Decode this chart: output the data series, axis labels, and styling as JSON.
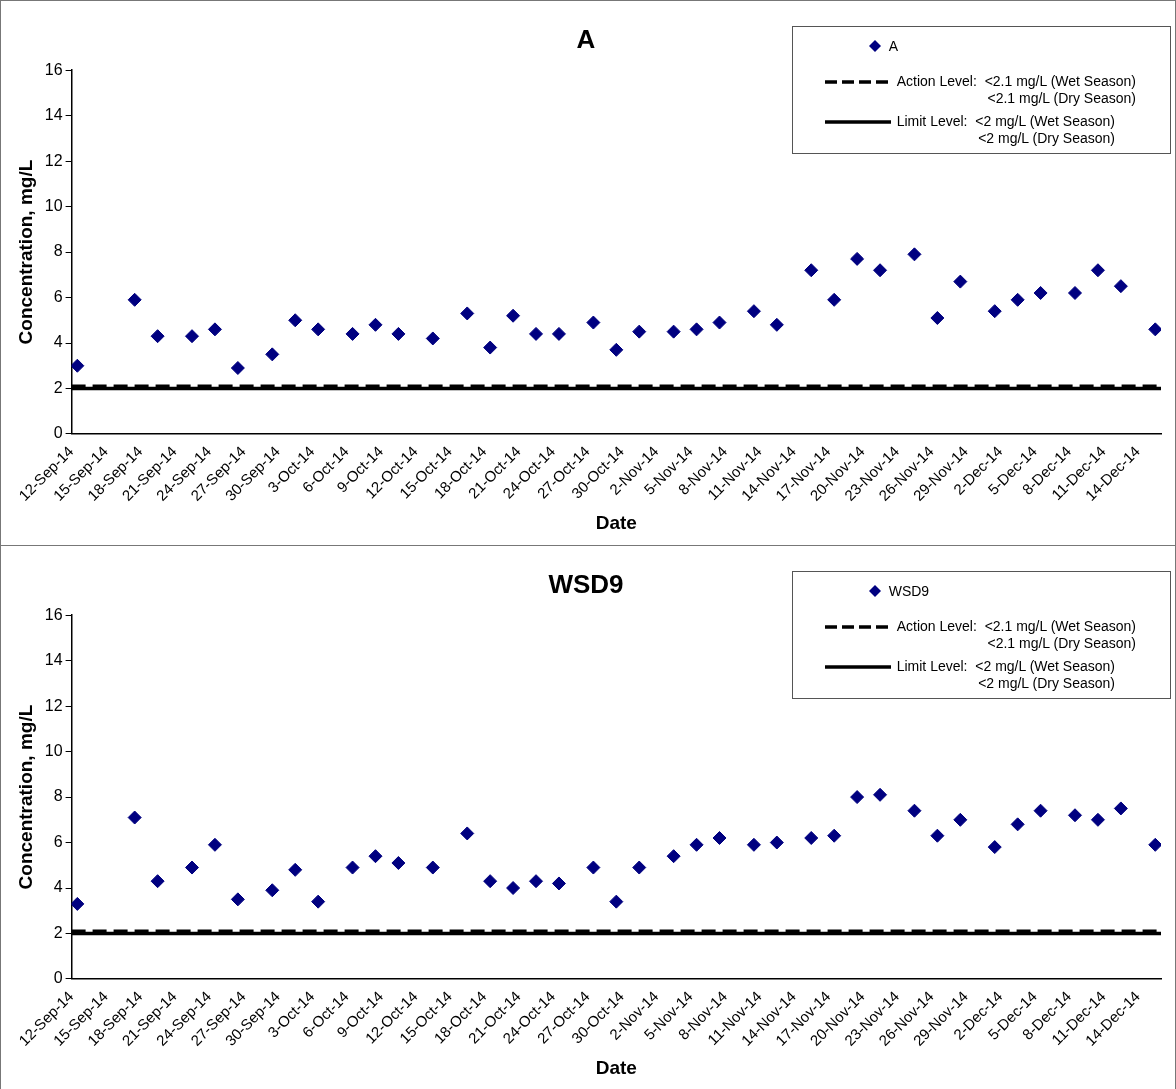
{
  "chart_data": [
    {
      "type": "scatter",
      "title": "A",
      "xlabel": "Date",
      "ylabel": "Concentration, mg/L",
      "x": [
        "--09-12T12:00",
        "--09-17T12:00",
        "--09-19T12:00",
        "--09-22T12:00",
        "--09-24T12:00",
        "--09-26T12:00",
        "--09-29T12:00",
        "--10-01T12:00",
        "--10-03T12:00",
        "--10-06T12:00",
        "--10-08T12:00",
        "--10-10T12:00",
        "--10-13T12:00",
        "--10-16T12:00",
        "--10-18T12:00",
        "--10-20T12:00",
        "--10-22T12:00",
        "--10-24T12:00",
        "--10-27T12:00",
        "--10-29T12:00",
        "--10-31T12:00",
        "--11-03T12:00",
        "--11-05T12:00",
        "--11-07T12:00",
        "--11-10T12:00",
        "--11-12T12:00",
        "--11-15T12:00",
        "--11-17T12:00",
        "--11-19T12:00",
        "--11-21T12:00",
        "--11-24T12:00",
        "--11-26T12:00",
        "--11-28T12:00",
        "--12-01T12:00",
        "--12-03T12:00",
        "--12-05T12:00",
        "--12-08T12:00",
        "--12-10T12:00",
        "--12-12T12:00",
        "--12-15T12:00"
      ],
      "series": [
        {
          "name": "A",
          "color": "#000080",
          "values": [
            3.0,
            5.9,
            4.3,
            4.3,
            4.6,
            2.9,
            3.5,
            5.0,
            4.6,
            4.4,
            4.8,
            4.4,
            4.2,
            5.3,
            3.8,
            5.2,
            4.4,
            4.4,
            4.9,
            3.7,
            4.5,
            4.5,
            4.6,
            4.9,
            5.4,
            4.8,
            7.2,
            5.9,
            7.7,
            7.2,
            7.9,
            5.1,
            6.7,
            5.4,
            5.9,
            6.2,
            6.2,
            7.2,
            6.5,
            4.6
          ]
        }
      ],
      "xlim": [
        "--09-12",
        "--12-16"
      ],
      "xticks": [
        {
          "value": "--09-12",
          "label": "12-Sep-14"
        },
        {
          "value": "--09-15",
          "label": "15-Sep-14"
        },
        {
          "value": "--09-18",
          "label": "18-Sep-14"
        },
        {
          "value": "--09-21",
          "label": "21-Sep-14"
        },
        {
          "value": "--09-24",
          "label": "24-Sep-14"
        },
        {
          "value": "--09-27",
          "label": "27-Sep-14"
        },
        {
          "value": "--09-30",
          "label": "30-Sep-14"
        },
        {
          "value": "--10-03",
          "label": "3-Oct-14"
        },
        {
          "value": "--10-06",
          "label": "6-Oct-14"
        },
        {
          "value": "--10-09",
          "label": "9-Oct-14"
        },
        {
          "value": "--10-12",
          "label": "12-Oct-14"
        },
        {
          "value": "--10-15",
          "label": "15-Oct-14"
        },
        {
          "value": "--10-18",
          "label": "18-Oct-14"
        },
        {
          "value": "--10-21",
          "label": "21-Oct-14"
        },
        {
          "value": "--10-24",
          "label": "24-Oct-14"
        },
        {
          "value": "--10-27",
          "label": "27-Oct-14"
        },
        {
          "value": "--10-30",
          "label": "30-Oct-14"
        },
        {
          "value": "--11-02",
          "label": "2-Nov-14"
        },
        {
          "value": "--11-05",
          "label": "5-Nov-14"
        },
        {
          "value": "--11-08",
          "label": "8-Nov-14"
        },
        {
          "value": "--11-11",
          "label": "11-Nov-14"
        },
        {
          "value": "--11-14",
          "label": "14-Nov-14"
        },
        {
          "value": "--11-17",
          "label": "17-Nov-14"
        },
        {
          "value": "--11-20",
          "label": "20-Nov-14"
        },
        {
          "value": "--11-23",
          "label": "23-Nov-14"
        },
        {
          "value": "--11-26",
          "label": "26-Nov-14"
        },
        {
          "value": "--11-29",
          "label": "29-Nov-14"
        },
        {
          "value": "--12-02",
          "label": "2-Dec-14"
        },
        {
          "value": "--12-05",
          "label": "5-Dec-14"
        },
        {
          "value": "--12-08",
          "label": "8-Dec-14"
        },
        {
          "value": "--12-11",
          "label": "11-Dec-14"
        },
        {
          "value": "--12-14",
          "label": "14-Dec-14"
        }
      ],
      "ylim": [
        0,
        16
      ],
      "yticks": [
        0,
        2,
        4,
        6,
        8,
        10,
        12,
        14,
        16
      ],
      "ref_lines": [
        {
          "axis": "y",
          "value": 2.1,
          "label": "Action Level:  <2.1 mg/L (Wet Season)\n<2.1 mg/L (Dry Season)",
          "color": "#000000",
          "line_style": "dashed"
        },
        {
          "axis": "y",
          "value": 2,
          "label": "Limit Level:  <2 mg/L (Wet Season)\n<2 mg/L (Dry Season)",
          "color": "#000000",
          "line_style": "solid"
        }
      ],
      "marker": "diamond",
      "legend": "top right"
    },
    {
      "type": "scatter",
      "title": "WSD9",
      "xlabel": "Date",
      "ylabel": "Concentration, mg/L",
      "x": [
        "--09-12T12:00",
        "--09-17T12:00",
        "--09-19T12:00",
        "--09-22T12:00",
        "--09-24T12:00",
        "--09-26T12:00",
        "--09-29T12:00",
        "--10-01T12:00",
        "--10-03T12:00",
        "--10-06T12:00",
        "--10-08T12:00",
        "--10-10T12:00",
        "--10-13T12:00",
        "--10-16T12:00",
        "--10-18T12:00",
        "--10-20T12:00",
        "--10-22T12:00",
        "--10-24T12:00",
        "--10-27T12:00",
        "--10-29T12:00",
        "--10-31T12:00",
        "--11-03T12:00",
        "--11-05T12:00",
        "--11-07T12:00",
        "--11-10T12:00",
        "--11-12T12:00",
        "--11-15T12:00",
        "--11-17T12:00",
        "--11-19T12:00",
        "--11-21T12:00",
        "--11-24T12:00",
        "--11-26T12:00",
        "--11-28T12:00",
        "--12-01T12:00",
        "--12-03T12:00",
        "--12-05T12:00",
        "--12-08T12:00",
        "--12-10T12:00",
        "--12-12T12:00",
        "--12-15T12:00"
      ],
      "series": [
        {
          "name": "WSD9",
          "color": "#000080",
          "values": [
            3.3,
            7.1,
            4.3,
            4.9,
            5.9,
            3.5,
            3.9,
            4.8,
            3.4,
            4.9,
            5.4,
            5.1,
            4.9,
            6.4,
            4.3,
            4.0,
            4.3,
            4.2,
            4.9,
            3.4,
            4.9,
            5.4,
            5.9,
            6.2,
            5.9,
            6.0,
            6.2,
            6.3,
            8.0,
            8.1,
            7.4,
            6.3,
            7.0,
            5.8,
            6.8,
            7.4,
            7.2,
            7.0,
            7.5,
            5.9
          ]
        }
      ],
      "xlim": [
        "--09-12",
        "--12-16"
      ],
      "xticks": [
        {
          "value": "--09-12",
          "label": "12-Sep-14"
        },
        {
          "value": "--09-15",
          "label": "15-Sep-14"
        },
        {
          "value": "--09-18",
          "label": "18-Sep-14"
        },
        {
          "value": "--09-21",
          "label": "21-Sep-14"
        },
        {
          "value": "--09-24",
          "label": "24-Sep-14"
        },
        {
          "value": "--09-27",
          "label": "27-Sep-14"
        },
        {
          "value": "--09-30",
          "label": "30-Sep-14"
        },
        {
          "value": "--10-03",
          "label": "3-Oct-14"
        },
        {
          "value": "--10-06",
          "label": "6-Oct-14"
        },
        {
          "value": "--10-09",
          "label": "9-Oct-14"
        },
        {
          "value": "--10-12",
          "label": "12-Oct-14"
        },
        {
          "value": "--10-15",
          "label": "15-Oct-14"
        },
        {
          "value": "--10-18",
          "label": "18-Oct-14"
        },
        {
          "value": "--10-21",
          "label": "21-Oct-14"
        },
        {
          "value": "--10-24",
          "label": "24-Oct-14"
        },
        {
          "value": "--10-27",
          "label": "27-Oct-14"
        },
        {
          "value": "--10-30",
          "label": "30-Oct-14"
        },
        {
          "value": "--11-02",
          "label": "2-Nov-14"
        },
        {
          "value": "--11-05",
          "label": "5-Nov-14"
        },
        {
          "value": "--11-08",
          "label": "8-Nov-14"
        },
        {
          "value": "--11-11",
          "label": "11-Nov-14"
        },
        {
          "value": "--11-14",
          "label": "14-Nov-14"
        },
        {
          "value": "--11-17",
          "label": "17-Nov-14"
        },
        {
          "value": "--11-20",
          "label": "20-Nov-14"
        },
        {
          "value": "--11-23",
          "label": "23-Nov-14"
        },
        {
          "value": "--11-26",
          "label": "26-Nov-14"
        },
        {
          "value": "--11-29",
          "label": "29-Nov-14"
        },
        {
          "value": "--12-02",
          "label": "2-Dec-14"
        },
        {
          "value": "--12-05",
          "label": "5-Dec-14"
        },
        {
          "value": "--12-08",
          "label": "8-Dec-14"
        },
        {
          "value": "--12-11",
          "label": "11-Dec-14"
        },
        {
          "value": "--12-14",
          "label": "14-Dec-14"
        }
      ],
      "ylim": [
        0,
        16
      ],
      "yticks": [
        0,
        2,
        4,
        6,
        8,
        10,
        12,
        14,
        16
      ],
      "ref_lines": [
        {
          "axis": "y",
          "value": 2.1,
          "label": "Action Level:  <2.1 mg/L (Wet Season)\n<2.1 mg/L (Dry Season)",
          "color": "#000000",
          "line_style": "dashed"
        },
        {
          "axis": "y",
          "value": 2,
          "label": "Limit Level:  <2 mg/L (Wet Season)\n<2 mg/L (Dry Season)",
          "color": "#000000",
          "line_style": "solid"
        }
      ],
      "marker": "diamond",
      "legend": "top right"
    }
  ]
}
